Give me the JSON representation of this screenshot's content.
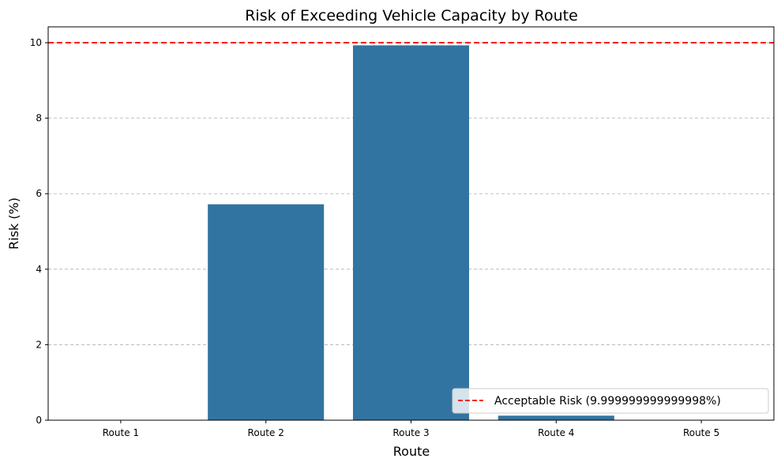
{
  "chart_data": {
    "type": "bar",
    "title": "Risk of Exceeding Vehicle Capacity by Route",
    "xlabel": "Route",
    "ylabel": "Risk (%)",
    "categories": [
      "Route 1",
      "Route 2",
      "Route 3",
      "Route 4",
      "Route 5"
    ],
    "values": [
      0,
      5.72,
      9.93,
      0.12,
      0
    ],
    "ylim": [
      0,
      10.42
    ],
    "yticks": [
      0,
      2,
      4,
      6,
      8,
      10
    ],
    "grid": "y-dashed",
    "bar_color": "#3274a1",
    "reference_line": {
      "value": 10,
      "label": "Acceptable Risk (9.999999999999998%)",
      "color": "#ff0000",
      "style": "dashed"
    },
    "legend_position": "lower-right"
  }
}
